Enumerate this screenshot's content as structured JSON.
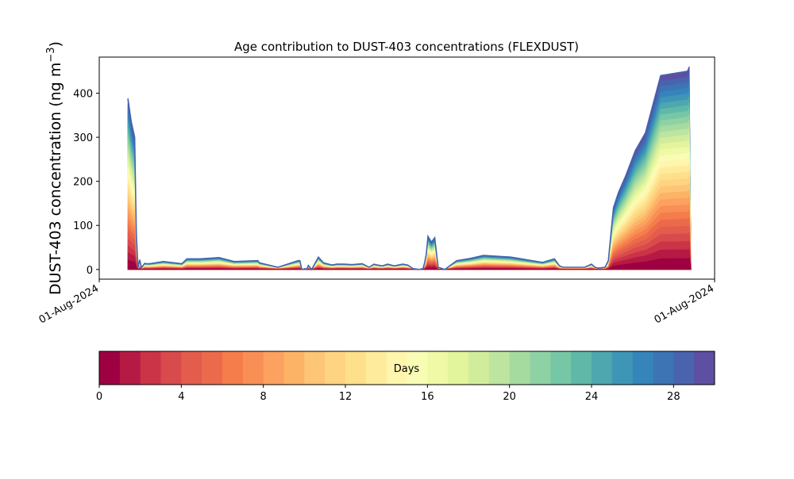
{
  "chart_data": {
    "type": "area",
    "title": "Age contribution to DUST-403 concentrations (FLEXDUST)",
    "ylabel_main": "DUST-403 concentration (ng m",
    "ylabel_sup": "−3",
    "ylabel_close": ")",
    "xlabel": "",
    "x_domain": [
      0,
      365
    ],
    "ylim": [
      -22,
      482
    ],
    "yticks": [
      0,
      100,
      200,
      300,
      400
    ],
    "xticks": [
      {
        "x": 0,
        "label": "01-Aug-2024"
      },
      {
        "x": 365,
        "label": "01-Aug-2024"
      }
    ],
    "grid": false,
    "x": [
      17,
      19,
      21,
      22,
      23,
      24,
      25,
      27,
      28,
      30,
      38,
      49,
      52,
      56,
      60,
      71,
      80,
      94,
      95,
      106,
      118,
      119,
      120,
      121,
      122,
      123,
      124,
      126,
      130,
      133,
      138,
      141,
      145,
      150,
      156,
      160,
      163,
      165,
      168,
      171,
      175,
      180,
      183,
      186,
      190,
      192,
      193,
      194,
      195,
      197,
      199,
      201,
      205,
      212,
      220,
      228,
      244,
      263,
      270,
      273,
      275,
      280,
      288,
      292,
      294,
      296,
      300,
      302,
      305,
      308,
      312,
      316,
      318,
      324,
      333,
      349,
      350,
      351
    ],
    "total": [
      388,
      335,
      300,
      80,
      5,
      22,
      4,
      14,
      13,
      13,
      18,
      13,
      24,
      24,
      24,
      27,
      18,
      20,
      15,
      5,
      20,
      20,
      2,
      0,
      2,
      0,
      9,
      0,
      28,
      15,
      10,
      12,
      12,
      11,
      13,
      5,
      12,
      10,
      8,
      12,
      8,
      12,
      10,
      2,
      0,
      2,
      15,
      35,
      75,
      62,
      72,
      5,
      0,
      20,
      25,
      32,
      28,
      16,
      24,
      8,
      5,
      5,
      5,
      12,
      5,
      3,
      5,
      20,
      140,
      175,
      210,
      250,
      270,
      310,
      440,
      450,
      460,
      0
    ],
    "colorbar": {
      "label": "Days",
      "min": 0,
      "max": 30,
      "ticks": [
        0,
        4,
        8,
        12,
        16,
        20,
        24,
        28
      ],
      "colors": [
        "#9e0142",
        "#b51a45",
        "#cb3346",
        "#d94a4c",
        "#e35c4c",
        "#ec6a4c",
        "#f57c4b",
        "#f88f55",
        "#fca15f",
        "#fdb365",
        "#fdc576",
        "#fed482",
        "#fee08b",
        "#feec9c",
        "#fff5ad",
        "#f8fcb4",
        "#eff9a6",
        "#e2f49c",
        "#d1ed9c",
        "#bde5a0",
        "#a6dba0",
        "#8ed1a4",
        "#76c7a5",
        "#60b8a8",
        "#4ea7af",
        "#3e96b7",
        "#3585bb",
        "#3c74b4",
        "#4a63ae",
        "#5e4fa2"
      ]
    }
  }
}
